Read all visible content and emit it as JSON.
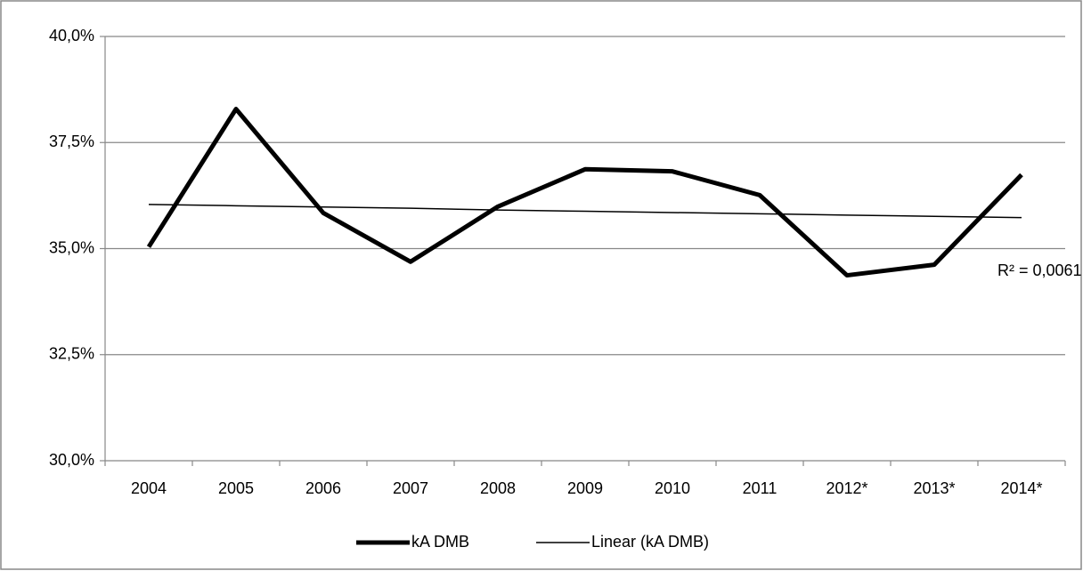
{
  "chart_data": {
    "type": "line",
    "categories": [
      "2004",
      "2005",
      "2006",
      "2007",
      "2008",
      "2009",
      "2010",
      "2011",
      "2012*",
      "2013*",
      "2014*"
    ],
    "series": [
      {
        "name": "kA DMB",
        "color": "#000000",
        "values": [
          35.04,
          38.29,
          35.84,
          34.69,
          35.99,
          36.87,
          36.82,
          36.26,
          34.37,
          34.62,
          36.74
        ]
      },
      {
        "name": "Linear (kA DMB)",
        "color": "#000000",
        "trendline": true,
        "values": [
          36.04,
          36.01,
          35.98,
          35.95,
          35.91,
          35.88,
          35.85,
          35.82,
          35.79,
          35.76,
          35.73
        ]
      }
    ],
    "annotations": [
      "R² = 0,0061"
    ],
    "ylim": [
      30,
      40
    ],
    "yticks": [
      {
        "value": 30,
        "label": "30,0%"
      },
      {
        "value": 32.5,
        "label": "32,5%"
      },
      {
        "value": 35,
        "label": "35,0%"
      },
      {
        "value": 37.5,
        "label": "37,5%"
      },
      {
        "value": 40,
        "label": "40,0%"
      }
    ],
    "grid": true,
    "legend": "bottom"
  }
}
